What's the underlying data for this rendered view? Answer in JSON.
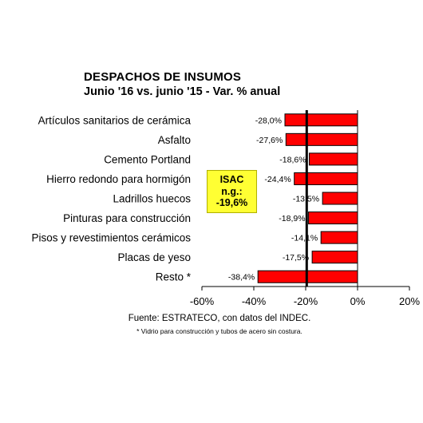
{
  "chart_data": {
    "type": "bar",
    "orientation": "horizontal",
    "title": "DESPACHOS DE INSUMOS",
    "subtitle": "Junio '16 vs. junio '15 - Var. % anual",
    "categories": [
      "Artículos sanitarios de cerámica",
      "Asfalto",
      "Cemento Portland",
      "Hierro redondo para hormigón",
      "Ladrillos huecos",
      "Pinturas para construcción",
      "Pisos y revestimientos cerámicos",
      "Placas de yeso",
      "Resto *"
    ],
    "values": [
      -28.0,
      -27.6,
      -18.6,
      -24.4,
      -13.5,
      -18.9,
      -14.1,
      -17.5,
      -38.4
    ],
    "value_labels": [
      "-28,0%",
      "-27,6%",
      "-18,6%",
      "-24,4%",
      "-13,5%",
      "-18,9%",
      "-14,1%",
      "-17,5%",
      "-38,4%"
    ],
    "x_ticks": [
      -60,
      -40,
      -20,
      0,
      20
    ],
    "x_tick_labels": [
      "-60%",
      "-40%",
      "-20%",
      "0%",
      "20%"
    ],
    "xlim": [
      -60,
      20
    ],
    "reference_line": -19.6,
    "grid": false,
    "bar_color": "#ff0000",
    "reference_line_color": "#000000"
  },
  "annotation": {
    "line1": "ISAC",
    "line2": "n.g.:",
    "line3": "-19,6%",
    "background": "#ffff33"
  },
  "source": "Fuente: ESTRATECO, con datos del INDEC.",
  "footnote": "* Vidrio para construcción y tubos de acero sin costura."
}
